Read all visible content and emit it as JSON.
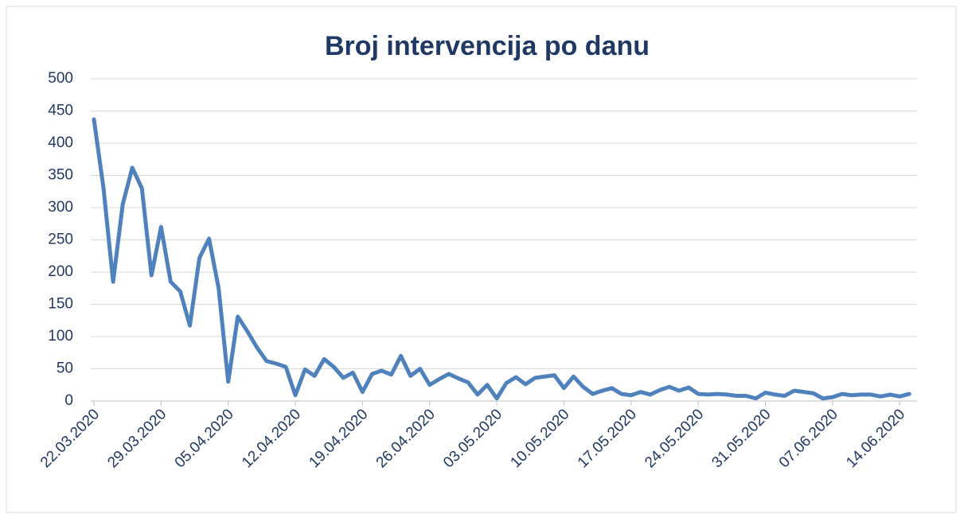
{
  "chart_data": {
    "type": "line",
    "title": "Broj intervencija po danu",
    "categories": [
      "22.03.2020",
      null,
      null,
      null,
      null,
      null,
      null,
      "29.03.2020",
      null,
      null,
      null,
      null,
      null,
      null,
      "05.04.2020",
      null,
      null,
      null,
      null,
      null,
      null,
      "12.04.2020",
      null,
      null,
      null,
      null,
      null,
      null,
      "19.04.2020",
      null,
      null,
      null,
      null,
      null,
      null,
      "26.04.2020",
      null,
      null,
      null,
      null,
      null,
      null,
      "03.05.2020",
      null,
      null,
      null,
      null,
      null,
      null,
      "10.05.2020",
      null,
      null,
      null,
      null,
      null,
      null,
      "17.05.2020",
      null,
      null,
      null,
      null,
      null,
      null,
      "24.05.2020",
      null,
      null,
      null,
      null,
      null,
      null,
      "31.05.2020",
      null,
      null,
      null,
      null,
      null,
      null,
      "07.06.2020",
      null,
      null,
      null,
      null,
      null,
      null,
      "14.06.2020",
      null
    ],
    "values": [
      437,
      330,
      185,
      305,
      362,
      330,
      195,
      270,
      185,
      170,
      117,
      222,
      252,
      175,
      30,
      131,
      108,
      83,
      62,
      58,
      53,
      9,
      49,
      39,
      65,
      53,
      36,
      44,
      14,
      42,
      47,
      41,
      70,
      39,
      50,
      25,
      34,
      42,
      35,
      29,
      10,
      25,
      4,
      28,
      37,
      26,
      36,
      38,
      40,
      20,
      38,
      22,
      11,
      16,
      20,
      11,
      9,
      14,
      10,
      17,
      22,
      16,
      21,
      11,
      10,
      11,
      10,
      8,
      8,
      4,
      13,
      10,
      8,
      16,
      14,
      12,
      4,
      6,
      11,
      9,
      10,
      10,
      7,
      10,
      7,
      11
    ],
    "color": "#4f81bd",
    "ylim": [
      0,
      500
    ],
    "yticks": [
      0,
      50,
      100,
      150,
      200,
      250,
      300,
      350,
      400,
      450,
      500
    ],
    "grid": true
  }
}
